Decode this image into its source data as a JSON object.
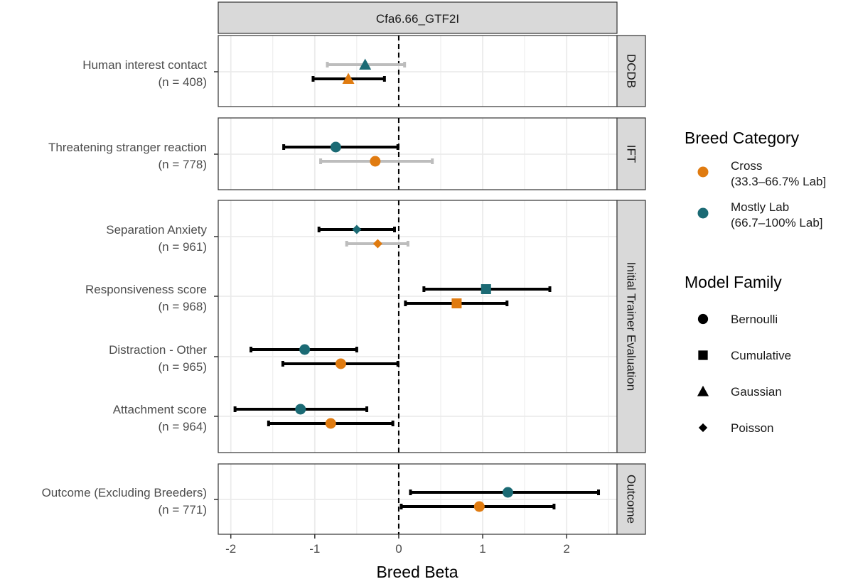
{
  "chart_data": {
    "type": "forest",
    "strip_title": "Cfa6.66_GTF2I",
    "xlabel": "Breed Beta",
    "xlim": [
      -2.15,
      2.6
    ],
    "xticks": [
      -2,
      -1,
      0,
      1,
      2
    ],
    "xtick_labels": [
      "-2",
      "-1",
      "0",
      "1",
      "2"
    ],
    "reference_line": 0,
    "colors": {
      "Cross": "#E07B10",
      "Mostly Lab": "#1B6A74",
      "non_significant": "#BDBDBD",
      "significant": "#000000",
      "strip_bg": "#D9D9D9",
      "grid": "#EBEBEB"
    },
    "panels": [
      {
        "label": "DCDB",
        "rows": [
          {
            "label": "Human interest contact",
            "n": "(n = 408)",
            "estimates": [
              {
                "group": "Mostly Lab",
                "family": "Gaussian",
                "beta": -0.4,
                "lo": -0.85,
                "hi": 0.07,
                "significant": false
              },
              {
                "group": "Cross",
                "family": "Gaussian",
                "beta": -0.6,
                "lo": -1.02,
                "hi": -0.17,
                "significant": true
              }
            ]
          }
        ]
      },
      {
        "label": "IFT",
        "rows": [
          {
            "label": "Threatening stranger reaction",
            "n": "(n = 778)",
            "estimates": [
              {
                "group": "Mostly Lab",
                "family": "Bernoulli",
                "beta": -0.75,
                "lo": -1.37,
                "hi": -0.01,
                "significant": true
              },
              {
                "group": "Cross",
                "family": "Bernoulli",
                "beta": -0.28,
                "lo": -0.93,
                "hi": 0.4,
                "significant": false
              }
            ]
          }
        ]
      },
      {
        "label": "Initial Trainer Evaluation",
        "rows": [
          {
            "label": "Separation Anxiety",
            "n": "(n = 961)",
            "estimates": [
              {
                "group": "Mostly Lab",
                "family": "Poisson",
                "beta": -0.5,
                "lo": -0.95,
                "hi": -0.05,
                "significant": true
              },
              {
                "group": "Cross",
                "family": "Poisson",
                "beta": -0.25,
                "lo": -0.62,
                "hi": 0.11,
                "significant": false
              }
            ]
          },
          {
            "label": "Responsiveness score",
            "n": "(n = 968)",
            "estimates": [
              {
                "group": "Mostly Lab",
                "family": "Cumulative",
                "beta": 1.04,
                "lo": 0.3,
                "hi": 1.8,
                "significant": true
              },
              {
                "group": "Cross",
                "family": "Cumulative",
                "beta": 0.69,
                "lo": 0.08,
                "hi": 1.29,
                "significant": true
              }
            ]
          },
          {
            "label": "Distraction - Other",
            "n": "(n = 965)",
            "estimates": [
              {
                "group": "Mostly Lab",
                "family": "Bernoulli",
                "beta": -1.12,
                "lo": -1.76,
                "hi": -0.5,
                "significant": true
              },
              {
                "group": "Cross",
                "family": "Bernoulli",
                "beta": -0.69,
                "lo": -1.38,
                "hi": -0.01,
                "significant": true
              }
            ]
          },
          {
            "label": "Attachment score",
            "n": "(n = 964)",
            "estimates": [
              {
                "group": "Mostly Lab",
                "family": "Bernoulli",
                "beta": -1.17,
                "lo": -1.95,
                "hi": -0.38,
                "significant": true
              },
              {
                "group": "Cross",
                "family": "Bernoulli",
                "beta": -0.81,
                "lo": -1.55,
                "hi": -0.07,
                "significant": true
              }
            ]
          }
        ]
      },
      {
        "label": "Outcome",
        "rows": [
          {
            "label": "Outcome (Excluding Breeders)",
            "n": "(n = 771)",
            "estimates": [
              {
                "group": "Mostly Lab",
                "family": "Bernoulli",
                "beta": 1.3,
                "lo": 0.14,
                "hi": 2.38,
                "significant": true
              },
              {
                "group": "Cross",
                "family": "Bernoulli",
                "beta": 0.96,
                "lo": 0.03,
                "hi": 1.85,
                "significant": true
              }
            ]
          }
        ]
      }
    ],
    "legend": {
      "position": "right",
      "breed": {
        "title": "Breed Category",
        "items": [
          {
            "key": "Cross",
            "line1": "Cross",
            "line2": "(33.3–66.7% Lab]"
          },
          {
            "key": "Mostly Lab",
            "line1": "Mostly Lab",
            "line2": "(66.7–100% Lab]"
          }
        ]
      },
      "family": {
        "title": "Model Family",
        "items": [
          {
            "key": "Bernoulli",
            "label": "Bernoulli"
          },
          {
            "key": "Cumulative",
            "label": "Cumulative"
          },
          {
            "key": "Gaussian",
            "label": "Gaussian"
          },
          {
            "key": "Poisson",
            "label": "Poisson"
          }
        ]
      }
    }
  }
}
